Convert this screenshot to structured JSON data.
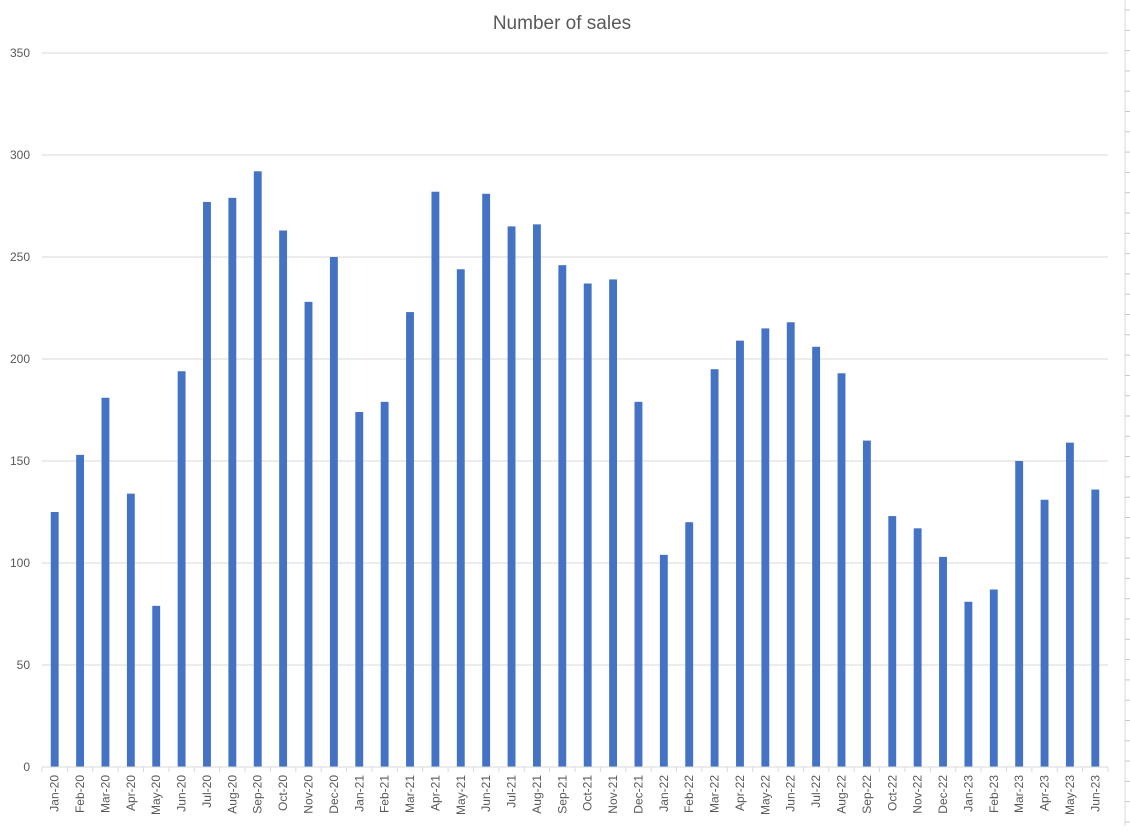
{
  "chart_data": {
    "type": "bar",
    "title": "Number of sales",
    "xlabel": "",
    "ylabel": "",
    "ylim": [
      0,
      350
    ],
    "yticks": [
      0,
      50,
      100,
      150,
      200,
      250,
      300,
      350
    ],
    "grid": true,
    "legend": "none",
    "bar_color": "#4472c4",
    "categories": [
      "Jan-20",
      "Feb-20",
      "Mar-20",
      "Apr-20",
      "May-20",
      "Jun-20",
      "Jul-20",
      "Aug-20",
      "Sep-20",
      "Oct-20",
      "Nov-20",
      "Dec-20",
      "Jan-21",
      "Feb-21",
      "Mar-21",
      "Apr-21",
      "May-21",
      "Jun-21",
      "Jul-21",
      "Aug-21",
      "Sep-21",
      "Oct-21",
      "Nov-21",
      "Dec-21",
      "Jan-22",
      "Feb-22",
      "Mar-22",
      "Apr-22",
      "May-22",
      "Jun-22",
      "Jul-22",
      "Aug-22",
      "Sep-22",
      "Oct-22",
      "Nov-22",
      "Dec-22",
      "Jan-23",
      "Feb-23",
      "Mar-23",
      "Apr-23",
      "May-23",
      "Jun-23"
    ],
    "values": [
      125,
      153,
      181,
      134,
      79,
      194,
      277,
      279,
      292,
      263,
      228,
      250,
      174,
      179,
      223,
      282,
      244,
      281,
      265,
      266,
      246,
      237,
      239,
      179,
      104,
      120,
      195,
      209,
      215,
      218,
      206,
      193,
      160,
      123,
      117,
      103,
      81,
      87,
      150,
      131,
      159,
      136
    ]
  }
}
